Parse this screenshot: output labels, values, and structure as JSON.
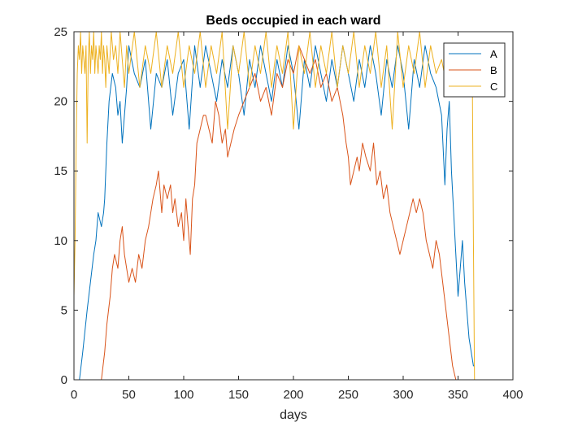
{
  "chart_data": {
    "type": "line",
    "title": "Beds occupied in each ward",
    "xlabel": "days",
    "ylabel": "",
    "xlim": [
      0,
      400
    ],
    "ylim": [
      0,
      25
    ],
    "xticks": [
      0,
      50,
      100,
      150,
      200,
      250,
      300,
      350,
      400
    ],
    "yticks": [
      0,
      5,
      10,
      15,
      20,
      25
    ],
    "grid": false,
    "legend_position": "top-right",
    "series": [
      {
        "name": "A",
        "color": "#0072BD",
        "points": [
          [
            0,
            0
          ],
          [
            5,
            0
          ],
          [
            8,
            2
          ],
          [
            12,
            5
          ],
          [
            15,
            7
          ],
          [
            18,
            9
          ],
          [
            20,
            10
          ],
          [
            22,
            12
          ],
          [
            25,
            11
          ],
          [
            27,
            12
          ],
          [
            28,
            13
          ],
          [
            30,
            17
          ],
          [
            32,
            20
          ],
          [
            35,
            22
          ],
          [
            38,
            21
          ],
          [
            40,
            19
          ],
          [
            42,
            20
          ],
          [
            44,
            17
          ],
          [
            46,
            19
          ],
          [
            48,
            21
          ],
          [
            50,
            24
          ],
          [
            55,
            22
          ],
          [
            60,
            21
          ],
          [
            65,
            23
          ],
          [
            70,
            18
          ],
          [
            75,
            22
          ],
          [
            80,
            21
          ],
          [
            85,
            23
          ],
          [
            90,
            19
          ],
          [
            95,
            22
          ],
          [
            100,
            23
          ],
          [
            105,
            18
          ],
          [
            110,
            24
          ],
          [
            115,
            21
          ],
          [
            120,
            24
          ],
          [
            125,
            22
          ],
          [
            130,
            20
          ],
          [
            135,
            23
          ],
          [
            140,
            21
          ],
          [
            145,
            24
          ],
          [
            150,
            22
          ],
          [
            155,
            19
          ],
          [
            160,
            23
          ],
          [
            165,
            21
          ],
          [
            170,
            24
          ],
          [
            175,
            22
          ],
          [
            180,
            20
          ],
          [
            185,
            23
          ],
          [
            190,
            21
          ],
          [
            195,
            24
          ],
          [
            200,
            22
          ],
          [
            205,
            18
          ],
          [
            210,
            23
          ],
          [
            215,
            21
          ],
          [
            220,
            24
          ],
          [
            225,
            22
          ],
          [
            230,
            20
          ],
          [
            235,
            23
          ],
          [
            240,
            21
          ],
          [
            245,
            24
          ],
          [
            250,
            22
          ],
          [
            255,
            20
          ],
          [
            260,
            23
          ],
          [
            265,
            21
          ],
          [
            270,
            24
          ],
          [
            275,
            22
          ],
          [
            280,
            19
          ],
          [
            285,
            23
          ],
          [
            290,
            21
          ],
          [
            295,
            24
          ],
          [
            300,
            22
          ],
          [
            305,
            18
          ],
          [
            310,
            23
          ],
          [
            315,
            21
          ],
          [
            320,
            24
          ],
          [
            325,
            22
          ],
          [
            330,
            21
          ],
          [
            335,
            19
          ],
          [
            338,
            14
          ],
          [
            340,
            18
          ],
          [
            342,
            20
          ],
          [
            344,
            15
          ],
          [
            346,
            12
          ],
          [
            348,
            9
          ],
          [
            350,
            6
          ],
          [
            352,
            8
          ],
          [
            354,
            10
          ],
          [
            356,
            7
          ],
          [
            358,
            5
          ],
          [
            360,
            3
          ],
          [
            362,
            2
          ],
          [
            364,
            1
          ],
          [
            365,
            1
          ]
        ]
      },
      {
        "name": "B",
        "color": "#D95319",
        "points": [
          [
            0,
            0
          ],
          [
            10,
            0
          ],
          [
            20,
            0
          ],
          [
            25,
            0
          ],
          [
            28,
            2
          ],
          [
            30,
            4
          ],
          [
            33,
            6
          ],
          [
            35,
            8
          ],
          [
            37,
            9
          ],
          [
            40,
            8
          ],
          [
            42,
            10
          ],
          [
            44,
            11
          ],
          [
            46,
            9
          ],
          [
            48,
            8
          ],
          [
            50,
            7
          ],
          [
            53,
            8
          ],
          [
            56,
            7
          ],
          [
            59,
            9
          ],
          [
            62,
            8
          ],
          [
            65,
            10
          ],
          [
            68,
            11
          ],
          [
            70,
            12
          ],
          [
            72,
            13
          ],
          [
            75,
            14
          ],
          [
            77,
            15
          ],
          [
            80,
            12
          ],
          [
            82,
            14
          ],
          [
            85,
            13
          ],
          [
            88,
            14
          ],
          [
            90,
            12
          ],
          [
            92,
            13
          ],
          [
            95,
            11
          ],
          [
            98,
            12
          ],
          [
            100,
            10
          ],
          [
            102,
            13
          ],
          [
            104,
            11
          ],
          [
            106,
            9
          ],
          [
            108,
            13
          ],
          [
            110,
            14
          ],
          [
            112,
            17
          ],
          [
            115,
            18
          ],
          [
            118,
            19
          ],
          [
            120,
            19
          ],
          [
            123,
            18
          ],
          [
            126,
            17
          ],
          [
            129,
            20
          ],
          [
            132,
            19
          ],
          [
            135,
            17
          ],
          [
            138,
            18
          ],
          [
            140,
            16
          ],
          [
            143,
            17
          ],
          [
            146,
            18
          ],
          [
            150,
            19
          ],
          [
            155,
            20
          ],
          [
            160,
            21
          ],
          [
            165,
            22
          ],
          [
            170,
            20
          ],
          [
            175,
            21
          ],
          [
            180,
            19
          ],
          [
            185,
            22
          ],
          [
            190,
            21
          ],
          [
            195,
            23
          ],
          [
            200,
            22
          ],
          [
            205,
            24
          ],
          [
            210,
            23
          ],
          [
            215,
            22
          ],
          [
            220,
            23
          ],
          [
            225,
            21
          ],
          [
            230,
            22
          ],
          [
            235,
            20
          ],
          [
            240,
            21
          ],
          [
            245,
            19
          ],
          [
            248,
            17
          ],
          [
            250,
            16
          ],
          [
            252,
            14
          ],
          [
            255,
            15
          ],
          [
            258,
            16
          ],
          [
            260,
            15
          ],
          [
            263,
            17
          ],
          [
            266,
            16
          ],
          [
            270,
            15
          ],
          [
            273,
            17
          ],
          [
            276,
            14
          ],
          [
            279,
            15
          ],
          [
            282,
            13
          ],
          [
            285,
            14
          ],
          [
            288,
            12
          ],
          [
            291,
            11
          ],
          [
            294,
            10
          ],
          [
            297,
            9
          ],
          [
            300,
            10
          ],
          [
            303,
            11
          ],
          [
            306,
            12
          ],
          [
            309,
            13
          ],
          [
            312,
            12
          ],
          [
            315,
            13
          ],
          [
            318,
            12
          ],
          [
            321,
            10
          ],
          [
            324,
            9
          ],
          [
            327,
            8
          ],
          [
            330,
            10
          ],
          [
            333,
            9
          ],
          [
            336,
            7
          ],
          [
            339,
            5
          ],
          [
            342,
            3
          ],
          [
            345,
            1
          ],
          [
            348,
            0
          ],
          [
            352,
            0
          ],
          [
            356,
            0
          ],
          [
            360,
            0
          ],
          [
            365,
            0
          ]
        ]
      },
      {
        "name": "C",
        "color": "#EDB120",
        "points": [
          [
            0,
            6
          ],
          [
            1,
            10
          ],
          [
            2,
            17
          ],
          [
            3,
            22
          ],
          [
            4,
            24
          ],
          [
            5,
            23
          ],
          [
            6,
            25
          ],
          [
            7,
            22
          ],
          [
            8,
            24
          ],
          [
            9,
            23
          ],
          [
            10,
            22
          ],
          [
            11,
            24
          ],
          [
            12,
            17
          ],
          [
            13,
            23
          ],
          [
            14,
            25
          ],
          [
            15,
            22
          ],
          [
            16,
            24
          ],
          [
            17,
            23
          ],
          [
            18,
            25
          ],
          [
            19,
            22
          ],
          [
            20,
            24
          ],
          [
            21,
            23
          ],
          [
            22,
            22
          ],
          [
            23,
            24
          ],
          [
            24,
            23
          ],
          [
            25,
            25
          ],
          [
            26,
            22
          ],
          [
            27,
            24
          ],
          [
            28,
            23
          ],
          [
            29,
            21
          ],
          [
            30,
            24
          ],
          [
            32,
            22
          ],
          [
            34,
            25
          ],
          [
            36,
            23
          ],
          [
            38,
            24
          ],
          [
            40,
            22
          ],
          [
            42,
            25
          ],
          [
            44,
            23
          ],
          [
            46,
            21
          ],
          [
            48,
            24
          ],
          [
            50,
            22
          ],
          [
            55,
            25
          ],
          [
            60,
            21
          ],
          [
            65,
            24
          ],
          [
            70,
            22
          ],
          [
            75,
            25
          ],
          [
            80,
            21
          ],
          [
            85,
            24
          ],
          [
            90,
            22
          ],
          [
            95,
            25
          ],
          [
            100,
            21
          ],
          [
            105,
            24
          ],
          [
            110,
            22
          ],
          [
            115,
            25
          ],
          [
            120,
            21
          ],
          [
            125,
            24
          ],
          [
            130,
            22
          ],
          [
            135,
            25
          ],
          [
            140,
            18
          ],
          [
            145,
            24
          ],
          [
            150,
            22
          ],
          [
            155,
            25
          ],
          [
            160,
            21
          ],
          [
            165,
            24
          ],
          [
            170,
            22
          ],
          [
            175,
            25
          ],
          [
            180,
            21
          ],
          [
            185,
            24
          ],
          [
            190,
            22
          ],
          [
            195,
            25
          ],
          [
            200,
            18
          ],
          [
            205,
            24
          ],
          [
            210,
            22
          ],
          [
            215,
            25
          ],
          [
            220,
            21
          ],
          [
            225,
            24
          ],
          [
            230,
            22
          ],
          [
            235,
            25
          ],
          [
            240,
            21
          ],
          [
            245,
            24
          ],
          [
            250,
            22
          ],
          [
            255,
            25
          ],
          [
            260,
            21
          ],
          [
            265,
            24
          ],
          [
            270,
            22
          ],
          [
            275,
            25
          ],
          [
            280,
            21
          ],
          [
            285,
            24
          ],
          [
            290,
            18
          ],
          [
            295,
            25
          ],
          [
            300,
            21
          ],
          [
            305,
            24
          ],
          [
            310,
            22
          ],
          [
            315,
            25
          ],
          [
            320,
            21
          ],
          [
            325,
            24
          ],
          [
            330,
            22
          ],
          [
            335,
            23
          ],
          [
            340,
            21
          ],
          [
            345,
            24
          ],
          [
            350,
            22
          ],
          [
            355,
            23
          ],
          [
            360,
            21
          ],
          [
            363,
            22
          ],
          [
            364,
            10
          ],
          [
            365,
            0
          ]
        ]
      }
    ]
  }
}
